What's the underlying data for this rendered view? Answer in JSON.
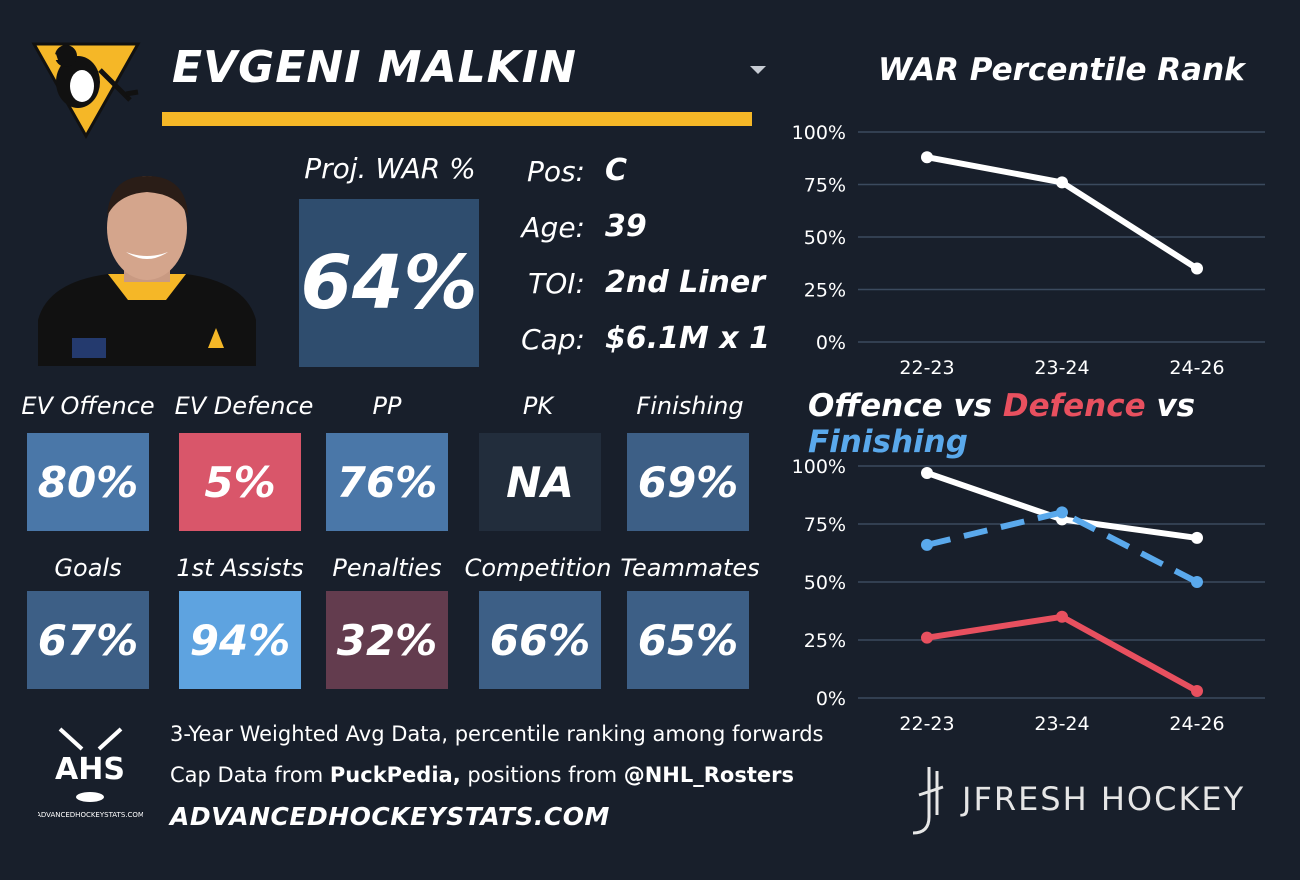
{
  "header": {
    "player_name": "EVGENI MALKIN"
  },
  "proj_war": {
    "label": "Proj. WAR %",
    "value": "64%"
  },
  "bio": [
    {
      "label": "Pos:",
      "value": "C"
    },
    {
      "label": "Age:",
      "value": "39"
    },
    {
      "label": "TOI:",
      "value": "2nd Liner"
    },
    {
      "label": "Cap:",
      "value": "$6.1M x 1"
    }
  ],
  "stats_row1": [
    {
      "label": "EV Offence",
      "value": "80%",
      "color": "#4a77a8"
    },
    {
      "label": "EV Defence",
      "value": "5%",
      "color": "#d9566a"
    },
    {
      "label": "PP",
      "value": "76%",
      "color": "#4a77a8"
    },
    {
      "label": "PK",
      "value": "NA",
      "color": "#222d3c"
    },
    {
      "label": "Finishing",
      "value": "69%",
      "color": "#3d5f86"
    }
  ],
  "stats_row2": [
    {
      "label": "Goals",
      "value": "67%",
      "color": "#3d5f86"
    },
    {
      "label": "1st Assists",
      "value": "94%",
      "color": "#5ea3e0"
    },
    {
      "label": "Penalties",
      "value": "32%",
      "color": "#633c4e"
    },
    {
      "label": "Competition",
      "value": "66%",
      "color": "#3d5f86"
    },
    {
      "label": "Teammates",
      "value": "65%",
      "color": "#3d5f86"
    }
  ],
  "footer": {
    "line1": "3-Year Weighted Avg Data, percentile ranking among forwards",
    "line2_prefix": "Cap Data from ",
    "line2_source": "PuckPedia,",
    "line2_mid": " positions from ",
    "line2_handle": "@NHL_Rosters",
    "url": "ADVANCEDHOCKEYSTATS.COM",
    "ahs_logo_text": "AHS",
    "ahs_logo_small": "ADVANCEDHOCKEYSTATS.COM",
    "brand": "JFRESH HOCKEY"
  },
  "colors": {
    "background": "#181f2b",
    "accent_gold": "#f5b727",
    "offence_white": "#ffffff",
    "defence_red": "#e8505f",
    "finishing_blue": "#5aa9ec"
  },
  "chart_data": [
    {
      "type": "line",
      "title": "WAR Percentile Rank",
      "categories": [
        "22-23",
        "23-24",
        "24-26"
      ],
      "yticks": [
        "100%",
        "75%",
        "50%",
        "25%",
        "0%"
      ],
      "ylim": [
        0,
        100
      ],
      "series": [
        {
          "values": [
            88,
            76,
            35
          ],
          "color": "#ffffff",
          "dash": false
        }
      ]
    },
    {
      "type": "line",
      "title_parts": [
        {
          "text": "Offence",
          "color": "#ffffff"
        },
        {
          "text": " vs ",
          "color": "#ffffff"
        },
        {
          "text": "Defence",
          "color": "#e8505f"
        },
        {
          "text": " vs ",
          "color": "#ffffff"
        },
        {
          "text": "Finishing",
          "color": "#5aa9ec"
        }
      ],
      "categories": [
        "22-23",
        "23-24",
        "24-26"
      ],
      "yticks": [
        "100%",
        "75%",
        "50%",
        "25%",
        "0%"
      ],
      "ylim": [
        0,
        100
      ],
      "series": [
        {
          "name": "Offence",
          "values": [
            97,
            77,
            69
          ],
          "color": "#ffffff",
          "dash": false
        },
        {
          "name": "Defence",
          "values": [
            26,
            35,
            3
          ],
          "color": "#e8505f",
          "dash": false
        },
        {
          "name": "Finishing",
          "values": [
            66,
            80,
            50
          ],
          "color": "#5aa9ec",
          "dash": true
        }
      ]
    }
  ]
}
